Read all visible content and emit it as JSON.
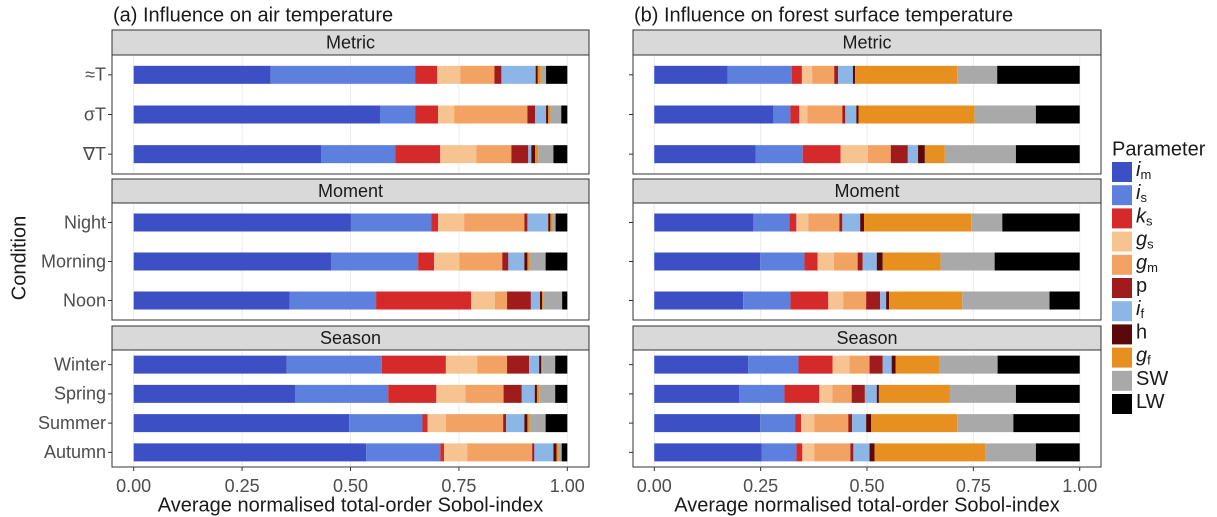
{
  "y_axis_label": "Condition",
  "legend": {
    "title": "Parameter",
    "items": [
      {
        "name": "i",
        "sub": "m",
        "color": "#3d4fc4"
      },
      {
        "name": "i",
        "sub": "s",
        "color": "#5d80df"
      },
      {
        "name": "k",
        "sub": "s",
        "color": "#d62a2a"
      },
      {
        "name": "g",
        "sub": "s",
        "color": "#f7c390"
      },
      {
        "name": "g",
        "sub": "m",
        "color": "#f2a262"
      },
      {
        "name": "p",
        "color": "#a01c1c"
      },
      {
        "name": "i",
        "sub": "f",
        "color": "#8cb6e6"
      },
      {
        "name": "h",
        "color": "#5a0808"
      },
      {
        "name": "g",
        "sub": "f",
        "color": "#e8901f"
      },
      {
        "name": "SW",
        "color": "#a9a9a9"
      },
      {
        "name": "LW",
        "color": "#000000"
      }
    ]
  },
  "chart_data": [
    {
      "type": "stacked_barh",
      "title": "(a) Influence on air temperature",
      "x_label": "Average normalised total-order Sobol-index",
      "xlim": [
        -0.05,
        1.05
      ],
      "xticks": [
        {
          "value": 0,
          "label": "0.00"
        },
        0.25,
        {
          "value": 0.5,
          "label": "0.50"
        },
        0.75,
        {
          "value": 1,
          "label": "1.00"
        }
      ],
      "facets": [
        {
          "title": "Metric",
          "categories": [
            "≈T",
            "σT",
            "∇T"
          ],
          "values": [
            [
              0.316,
              0.333,
              0.051,
              0.053,
              0.079,
              0.016,
              0.079,
              0.005,
              0.007,
              0.012,
              0.049
            ],
            [
              0.568,
              0.081,
              0.053,
              0.037,
              0.169,
              0.018,
              0.025,
              0.005,
              0.005,
              0.025,
              0.014
            ],
            [
              0.432,
              0.171,
              0.104,
              0.083,
              0.081,
              0.039,
              0.007,
              0.009,
              0.007,
              0.035,
              0.032
            ]
          ]
        },
        {
          "title": "Moment",
          "categories": [
            "Night",
            "Morning",
            "Noon"
          ],
          "values": [
            [
              0.501,
              0.185,
              0.016,
              0.06,
              0.139,
              0.007,
              0.048,
              0.005,
              0.005,
              0.007,
              0.027
            ],
            [
              0.455,
              0.201,
              0.037,
              0.058,
              0.099,
              0.014,
              0.037,
              0.007,
              0.005,
              0.037,
              0.05
            ],
            [
              0.36,
              0.199,
              0.219,
              0.055,
              0.028,
              0.055,
              0.021,
              0.005,
              0.002,
              0.044,
              0.012
            ]
          ]
        },
        {
          "title": "Season",
          "categories": [
            "Winter",
            "Spring",
            "Summer",
            "Autumn"
          ],
          "values": [
            [
              0.353,
              0.219,
              0.148,
              0.072,
              0.069,
              0.051,
              0.023,
              0.005,
              0.002,
              0.03,
              0.028
            ],
            [
              0.372,
              0.215,
              0.111,
              0.067,
              0.088,
              0.042,
              0.03,
              0.005,
              0.005,
              0.037,
              0.028
            ],
            [
              0.497,
              0.169,
              0.012,
              0.042,
              0.132,
              0.007,
              0.042,
              0.007,
              0.005,
              0.037,
              0.05
            ],
            [
              0.536,
              0.171,
              0.009,
              0.053,
              0.15,
              0.005,
              0.044,
              0.007,
              0.005,
              0.007,
              0.013
            ]
          ]
        }
      ]
    },
    {
      "type": "stacked_barh",
      "title": "(b) Influence on forest surface temperature",
      "x_label": "Average normalised total-order Sobol-index",
      "xlim": [
        -0.05,
        1.05
      ],
      "xticks": [
        {
          "value": 0,
          "label": "0.00"
        },
        0.25,
        {
          "value": 0.5,
          "label": "0.50"
        },
        0.75,
        {
          "value": 1,
          "label": "1.00"
        }
      ],
      "facets": [
        {
          "title": "Metric",
          "values": [
            [
              0.172,
              0.151,
              0.024,
              0.024,
              0.052,
              0.009,
              0.035,
              0.005,
              0.24,
              0.094,
              0.194
            ],
            [
              0.28,
              0.04,
              0.021,
              0.019,
              0.082,
              0.007,
              0.026,
              0.005,
              0.273,
              0.144,
              0.103
            ],
            [
              0.238,
              0.111,
              0.089,
              0.064,
              0.054,
              0.04,
              0.024,
              0.016,
              0.047,
              0.167,
              0.15
            ]
          ]
        },
        {
          "title": "Moment",
          "values": [
            [
              0.233,
              0.085,
              0.016,
              0.028,
              0.073,
              0.007,
              0.042,
              0.009,
              0.252,
              0.073,
              0.182
            ],
            [
              0.249,
              0.104,
              0.031,
              0.038,
              0.056,
              0.012,
              0.033,
              0.014,
              0.136,
              0.127,
              0.2
            ],
            [
              0.209,
              0.111,
              0.089,
              0.035,
              0.054,
              0.033,
              0.014,
              0.007,
              0.172,
              0.205,
              0.071
            ]
          ]
        },
        {
          "title": "Season",
          "values": [
            [
              0.221,
              0.118,
              0.08,
              0.04,
              0.047,
              0.031,
              0.021,
              0.009,
              0.104,
              0.136,
              0.193
            ],
            [
              0.2,
              0.106,
              0.082,
              0.031,
              0.045,
              0.031,
              0.028,
              0.005,
              0.167,
              0.155,
              0.15
            ],
            [
              0.249,
              0.082,
              0.014,
              0.031,
              0.08,
              0.009,
              0.033,
              0.012,
              0.202,
              0.132,
              0.156
            ],
            [
              0.252,
              0.082,
              0.014,
              0.028,
              0.085,
              0.007,
              0.038,
              0.012,
              0.261,
              0.118,
              0.103
            ]
          ]
        }
      ]
    }
  ]
}
